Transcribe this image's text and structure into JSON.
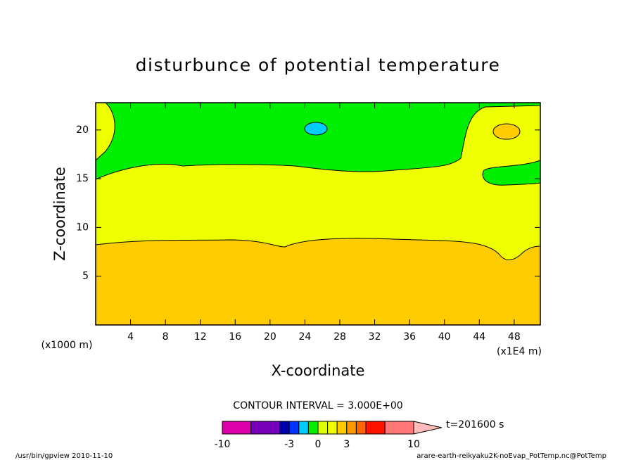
{
  "chart_data": {
    "type": "contour",
    "title": "disturbunce of potential temperature",
    "x_label": "X-coordinate",
    "y_label": "Z-coordinate",
    "x_unit_label": "(x1000 m)",
    "x_scale_label": "(x1E4 m)",
    "xlim": [
      0,
      51
    ],
    "ylim": [
      0,
      22.8
    ],
    "xticks": [
      4,
      8,
      12,
      16,
      20,
      24,
      28,
      32,
      36,
      40,
      44,
      48
    ],
    "yticks": [
      5,
      10,
      15,
      20
    ],
    "contour_interval_label": "CONTOUR INTERVAL = 3.000E+00",
    "time_label": "t=201600 s",
    "colorbar": {
      "levels": [
        -10,
        -7,
        -4,
        -3,
        -2,
        -1,
        0,
        1,
        2,
        3,
        4,
        5,
        7,
        10
      ],
      "colors": [
        "#dd00aa",
        "#7700bb",
        "#0000aa",
        "#0033ff",
        "#00ccff",
        "#00ee00",
        "#ddff00",
        "#eeff00",
        "#ffcc00",
        "#ff9900",
        "#ff6600",
        "#ff1100",
        "#ff7777"
      ],
      "extend_color": "#ffbbbb",
      "ticks": [
        -10,
        -3,
        0,
        3,
        10
      ]
    },
    "footer_left": "/usr/bin/gpview  2010-11-10",
    "footer_right": "arare-earth-reikyaku2K-noEvap_PotTemp.nc@PotTemp"
  }
}
